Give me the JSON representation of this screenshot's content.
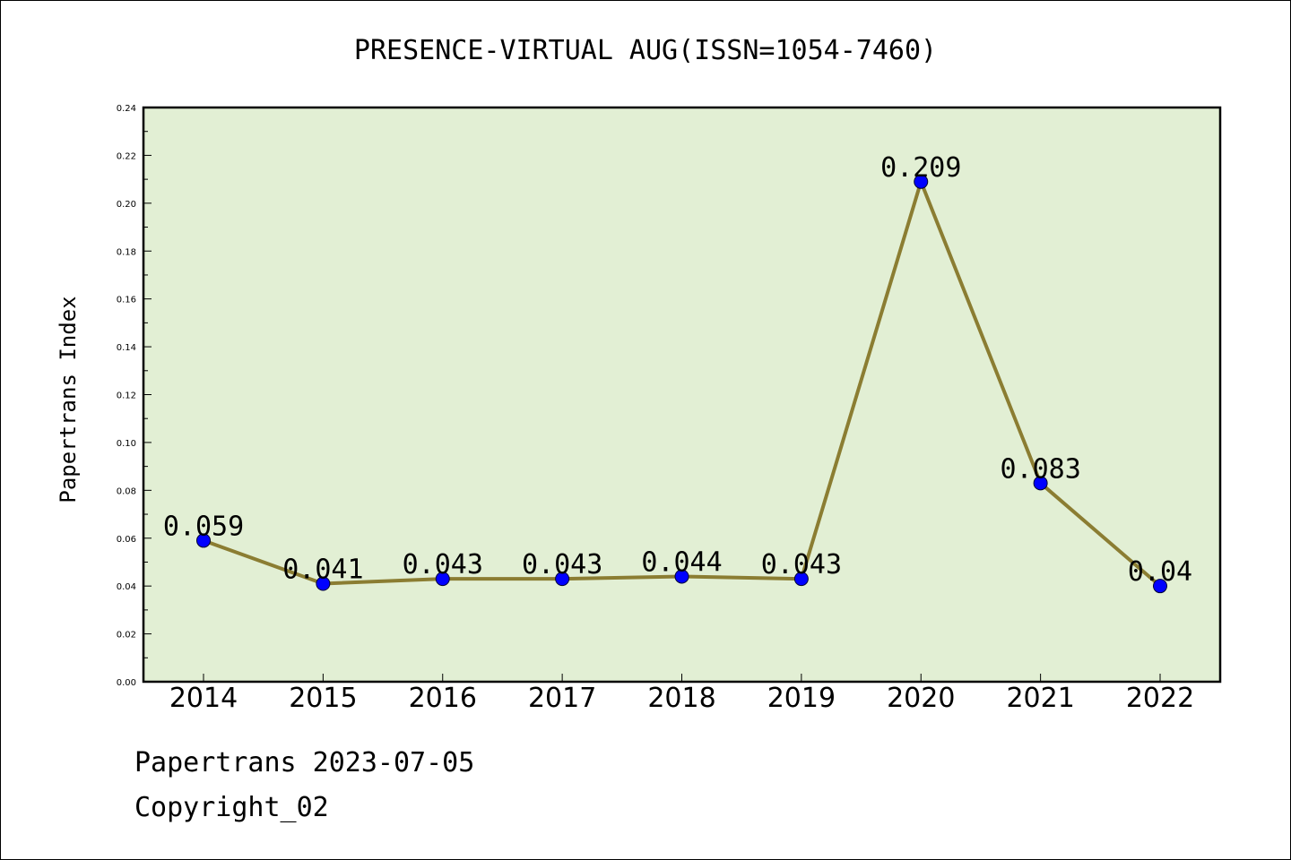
{
  "chart_data": {
    "type": "line",
    "title": "PRESENCE-VIRTUAL AUG(ISSN=1054-7460)",
    "xlabel": "",
    "ylabel": "Papertrans Index",
    "categories": [
      "2014",
      "2015",
      "2016",
      "2017",
      "2018",
      "2019",
      "2020",
      "2021",
      "2022"
    ],
    "values": [
      0.059,
      0.041,
      0.043,
      0.043,
      0.044,
      0.043,
      0.209,
      0.083,
      0.04
    ],
    "data_labels": [
      "0.059",
      "0.041",
      "0.043",
      "0.043",
      "0.044",
      "0.043",
      "0.209",
      "0.083",
      "0.04"
    ],
    "ylim": [
      0,
      0.24
    ],
    "yticks": [
      "0.00",
      "0.02",
      "0.04",
      "0.06",
      "0.08",
      "0.10",
      "0.12",
      "0.14",
      "0.16",
      "0.18",
      "0.20",
      "0.22",
      "0.24"
    ],
    "grid": false,
    "colors": {
      "line": "#8b7d32",
      "marker": "#0000ff",
      "plot_background": "#e2efd4"
    }
  },
  "footer": {
    "date_text": "Papertrans 2023-07-05",
    "copyright_text": "Copyright_02"
  }
}
